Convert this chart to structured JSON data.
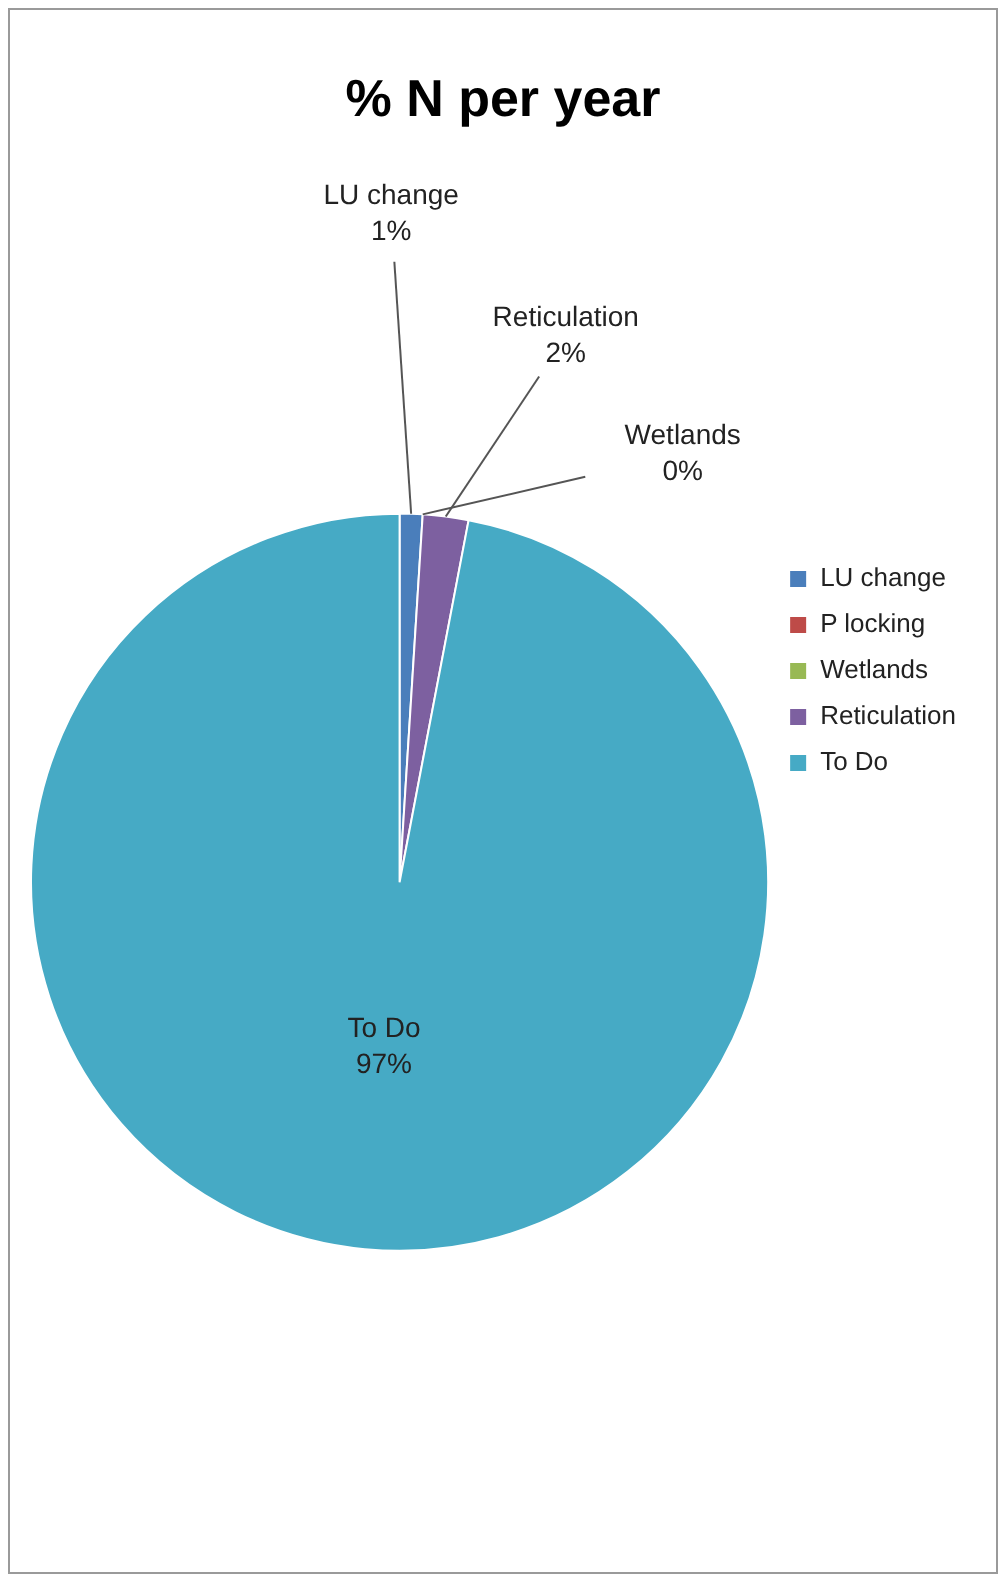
{
  "chart_data": {
    "type": "pie",
    "title": "% N per year",
    "categories": [
      "LU change",
      "P locking",
      "Wetlands",
      "Reticulation",
      "To Do"
    ],
    "values": [
      1,
      0,
      0,
      2,
      97
    ],
    "colors": [
      "#4a7ebb",
      "#be4b48",
      "#98b954",
      "#7d60a0",
      "#46aac5"
    ],
    "value_labels": [
      "1%",
      null,
      "0%",
      "2%",
      "97%"
    ],
    "legend": "right"
  }
}
